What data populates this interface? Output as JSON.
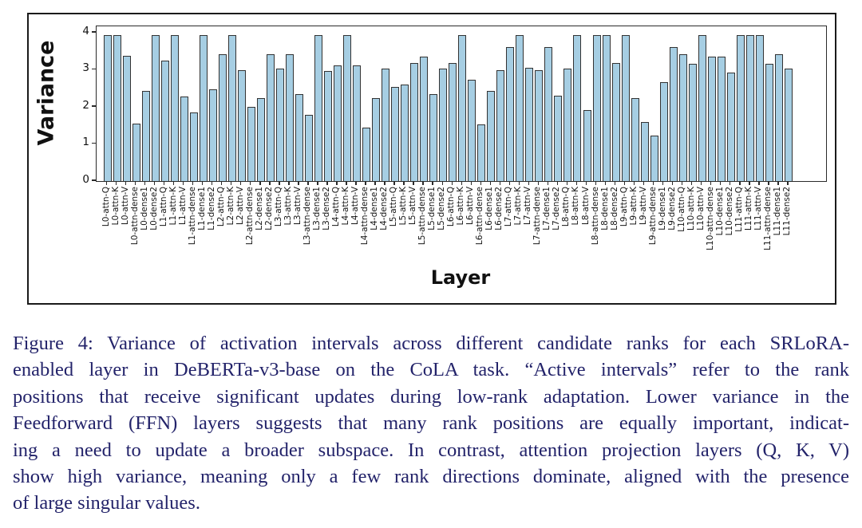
{
  "figure": {
    "frame_color": "#1a1a1a",
    "background": "#ffffff"
  },
  "chart_data": {
    "type": "bar",
    "title": "",
    "xlabel": "Layer",
    "ylabel": "Variance",
    "ylim": [
      0,
      4.17
    ],
    "yticks": [
      0,
      1,
      2,
      3,
      4
    ],
    "grid": false,
    "legend": "none",
    "bar_color": "#a6cee3",
    "bar_edge_color": "#333333",
    "categories": [
      "L0-attn-Q",
      "L0-attn-K",
      "L0-attn-V",
      "L0-attn-dense",
      "L0-dense1",
      "L0-dense2",
      "L1-attn-Q",
      "L1-attn-K",
      "L1-attn-V",
      "L1-attn-dense",
      "L1-dense1",
      "L1-dense2",
      "L2-attn-Q",
      "L2-attn-K",
      "L2-attn-V",
      "L2-attn-dense",
      "L2-dense1",
      "L2-dense2",
      "L3-attn-Q",
      "L3-attn-K",
      "L3-attn-V",
      "L3-attn-dense",
      "L3-dense1",
      "L3-dense2",
      "L4-attn-Q",
      "L4-attn-K",
      "L4-attn-V",
      "L4-attn-dense",
      "L4-dense1",
      "L4-dense2",
      "L5-attn-Q",
      "L5-attn-K",
      "L5-attn-V",
      "L5-attn-dense",
      "L5-dense1",
      "L5-dense2",
      "L6-attn-Q",
      "L6-attn-K",
      "L6-attn-V",
      "L6-attn-dense",
      "L6-dense1",
      "L6-dense2",
      "L7-attn-Q",
      "L7-attn-K",
      "L7-attn-V",
      "L7-attn-dense",
      "L7-dense1",
      "L7-dense2",
      "L8-attn-Q",
      "L8-attn-K",
      "L8-attn-V",
      "L8-attn-dense",
      "L8-dense1",
      "L8-dense2",
      "L9-attn-Q",
      "L9-attn-K",
      "L9-attn-V",
      "L9-attn-dense",
      "L9-dense1",
      "L9-dense2",
      "L10-attn-Q",
      "L10-attn-K",
      "L10-attn-V",
      "L10-attn-dense",
      "L10-dense1",
      "L10-dense2",
      "L11-attn-Q",
      "L11-attn-K",
      "L11-attn-V",
      "L11-attn-dense",
      "L11-dense1",
      "L11-dense2"
    ],
    "values": [
      3.93,
      3.93,
      3.37,
      1.55,
      2.43,
      3.93,
      3.24,
      3.93,
      2.28,
      1.85,
      3.93,
      2.47,
      3.41,
      3.93,
      2.99,
      1.99,
      2.24,
      3.42,
      3.04,
      3.42,
      2.35,
      1.78,
      3.93,
      2.97,
      3.11,
      3.93,
      3.11,
      1.44,
      2.23,
      3.04,
      2.54,
      2.61,
      3.18,
      3.36,
      2.35,
      3.04,
      3.18,
      3.93,
      2.73,
      1.53,
      2.42,
      2.99,
      3.61,
      3.93,
      3.06,
      2.99,
      3.61,
      2.29,
      3.04,
      3.93,
      1.92,
      3.93,
      3.93,
      3.18,
      3.93,
      2.23,
      1.6,
      1.23,
      2.66,
      3.61,
      3.42,
      3.17,
      3.93,
      3.35,
      3.36,
      2.92,
      3.93,
      3.93,
      3.93,
      3.17,
      3.41,
      3.04
    ]
  },
  "caption": {
    "text_color": "#23236a",
    "lines": [
      "Figure 4:  Variance of activation intervals across different candidate ranks for each SRLoRA-",
      "enabled layer in DeBERTa-v3-base on the CoLA task.  “Active intervals” refer to the rank",
      "positions that receive significant updates during low-rank adaptation.  Lower variance in the",
      "Feedforward (FFN) layers suggests that many rank positions are equally important, indicat-",
      "ing a need to update a broader subspace.  In contrast, attention projection layers (Q, K, V)",
      "show high variance, meaning only a few rank directions dominate, aligned with the presence",
      "of large singular values."
    ]
  }
}
